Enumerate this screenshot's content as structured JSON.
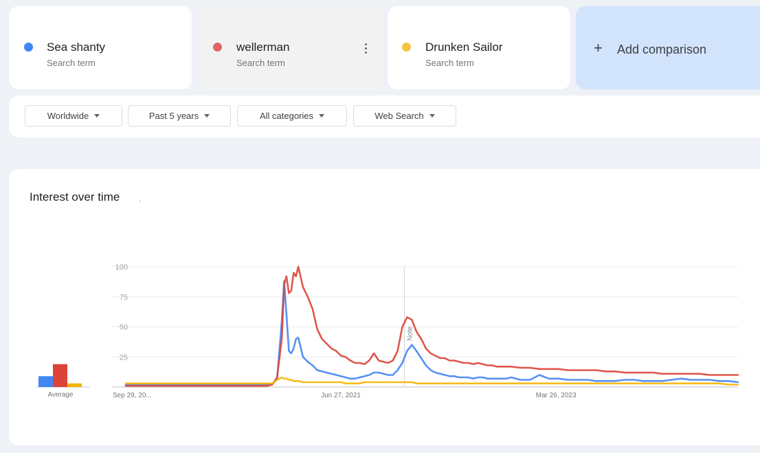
{
  "terms": [
    {
      "name": "Sea shanty",
      "sub": "Search term",
      "color": "#4285f4"
    },
    {
      "name": "wellerman",
      "sub": "Search term",
      "color": "#db4437"
    },
    {
      "name": "Drunken Sailor",
      "sub": "Search term",
      "color": "#f4b400"
    }
  ],
  "add_comparison": {
    "icon": "plus-icon",
    "label": "Add comparison"
  },
  "filters": {
    "region": "Worldwide",
    "time": "Past 5 years",
    "category": "All categories",
    "search_type": "Web Search"
  },
  "chart": {
    "title": "Interest over time",
    "average_label": "Average",
    "note_label": "Note"
  },
  "chart_data": {
    "type": "line",
    "title": "Interest over time",
    "xlabel": "",
    "ylabel": "",
    "ylim": [
      0,
      100
    ],
    "yticks": [
      25,
      50,
      75,
      100
    ],
    "x_tick_labels": [
      "Sep 29, 20...",
      "Jun 27, 2021",
      "Mar 26, 2023"
    ],
    "x": [
      "2019-09-29",
      "2019-10-27",
      "2019-11-24",
      "2019-12-22",
      "2020-01-19",
      "2020-02-16",
      "2020-03-15",
      "2020-04-12",
      "2020-05-10",
      "2020-06-07",
      "2020-07-05",
      "2020-08-02",
      "2020-08-30",
      "2020-09-27",
      "2020-10-25",
      "2020-11-22",
      "2020-12-06",
      "2020-12-20",
      "2021-01-03",
      "2021-01-10",
      "2021-01-17",
      "2021-01-24",
      "2021-01-31",
      "2021-02-07",
      "2021-02-14",
      "2021-02-21",
      "2021-03-07",
      "2021-03-21",
      "2021-04-04",
      "2021-04-18",
      "2021-05-02",
      "2021-05-16",
      "2021-05-30",
      "2021-06-13",
      "2021-06-27",
      "2021-07-11",
      "2021-07-25",
      "2021-08-08",
      "2021-08-22",
      "2021-09-05",
      "2021-09-19",
      "2021-10-03",
      "2021-10-17",
      "2021-10-31",
      "2021-11-14",
      "2021-11-28",
      "2021-12-12",
      "2021-12-26",
      "2022-01-09",
      "2022-01-23",
      "2022-02-06",
      "2022-02-20",
      "2022-03-06",
      "2022-03-20",
      "2022-04-03",
      "2022-04-17",
      "2022-05-01",
      "2022-05-15",
      "2022-05-29",
      "2022-06-12",
      "2022-06-26",
      "2022-07-10",
      "2022-07-24",
      "2022-08-07",
      "2022-08-21",
      "2022-09-04",
      "2022-09-18",
      "2022-10-02",
      "2022-10-16",
      "2022-10-30",
      "2022-11-13",
      "2022-12-11",
      "2023-01-08",
      "2023-02-05",
      "2023-03-05",
      "2023-04-02",
      "2023-04-30",
      "2023-05-28",
      "2023-06-25",
      "2023-07-23",
      "2023-08-20",
      "2023-09-17",
      "2023-10-15",
      "2023-11-12",
      "2023-12-10",
      "2024-01-07",
      "2024-02-04",
      "2024-03-03",
      "2024-03-31",
      "2024-04-28",
      "2024-05-26",
      "2024-06-23",
      "2024-07-21",
      "2024-08-18",
      "2024-09-15"
    ],
    "series": [
      {
        "name": "Sea shanty",
        "color": "#4285f4",
        "values": [
          2,
          2,
          2,
          2,
          2,
          2,
          2,
          2,
          2,
          2,
          2,
          2,
          2,
          2,
          2,
          2,
          3,
          6,
          55,
          88,
          60,
          30,
          28,
          32,
          40,
          41,
          25,
          21,
          18,
          14,
          13,
          12,
          11,
          10,
          9,
          8,
          7,
          7,
          8,
          9,
          10,
          12,
          12,
          11,
          10,
          10,
          14,
          20,
          30,
          35,
          30,
          24,
          18,
          14,
          12,
          11,
          10,
          9,
          9,
          8,
          8,
          8,
          7,
          8,
          8,
          7,
          7,
          7,
          7,
          7,
          8,
          6,
          6,
          10,
          7,
          7,
          6,
          6,
          6,
          5,
          5,
          5,
          6,
          6,
          5,
          5,
          5,
          6,
          7,
          6,
          6,
          6,
          5,
          5,
          4
        ]
      },
      {
        "name": "wellerman",
        "color": "#db4437",
        "values": [
          1,
          1,
          1,
          1,
          1,
          1,
          1,
          1,
          1,
          1,
          1,
          1,
          1,
          1,
          1,
          1,
          2,
          8,
          40,
          85,
          92,
          78,
          80,
          95,
          92,
          100,
          83,
          75,
          65,
          48,
          40,
          36,
          32,
          30,
          26,
          25,
          22,
          20,
          20,
          19,
          22,
          28,
          22,
          21,
          20,
          22,
          30,
          50,
          58,
          56,
          46,
          40,
          32,
          28,
          26,
          24,
          24,
          22,
          22,
          21,
          20,
          20,
          19,
          20,
          19,
          18,
          18,
          17,
          17,
          17,
          17,
          16,
          16,
          15,
          15,
          15,
          14,
          14,
          14,
          14,
          13,
          13,
          12,
          12,
          12,
          12,
          11,
          11,
          11,
          11,
          11,
          10,
          10,
          10,
          10
        ]
      },
      {
        "name": "Drunken Sailor",
        "color": "#f4b400",
        "values": [
          3,
          3,
          3,
          3,
          3,
          3,
          3,
          3,
          3,
          3,
          3,
          3,
          3,
          3,
          3,
          3,
          3,
          6,
          8,
          7,
          7,
          6,
          6,
          5,
          5,
          5,
          4,
          4,
          4,
          4,
          4,
          4,
          4,
          4,
          4,
          3,
          3,
          3,
          3,
          4,
          4,
          4,
          4,
          4,
          4,
          4,
          4,
          4,
          4,
          4,
          3,
          3,
          3,
          3,
          3,
          3,
          3,
          3,
          3,
          3,
          3,
          3,
          3,
          3,
          3,
          3,
          3,
          3,
          3,
          3,
          3,
          3,
          3,
          3,
          3,
          3,
          3,
          3,
          3,
          3,
          3,
          3,
          3,
          3,
          3,
          3,
          3,
          3,
          3,
          3,
          3,
          3,
          3,
          2,
          2
        ]
      }
    ],
    "averages": [
      {
        "name": "Sea shanty",
        "value": 9,
        "color": "#4285f4"
      },
      {
        "name": "wellerman",
        "value": 19,
        "color": "#db4437"
      },
      {
        "name": "Drunken Sailor",
        "value": 3,
        "color": "#f4b400"
      }
    ],
    "annotations": [
      {
        "x": "2022-01-01",
        "label": "Note"
      }
    ],
    "grid": true,
    "legend": "none"
  }
}
